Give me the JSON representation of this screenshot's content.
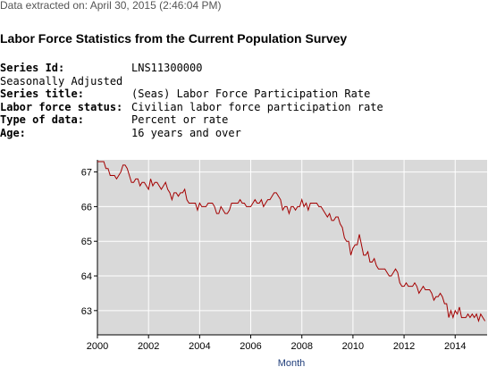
{
  "header": {
    "extracted": "Data extracted on: April 30, 2015 (2:46:04 PM)",
    "title": "Labor Force Statistics from the Current Population Survey"
  },
  "series_info": {
    "id_label": "Series Id:",
    "id_value": "LNS11300000",
    "adjustment": "Seasonally Adjusted",
    "title_label": "Series title:",
    "title_value": "(Seas) Labor Force Participation Rate",
    "status_label": "Labor force status:",
    "status_value": "Civilian labor force participation rate",
    "type_label": "Type of data:",
    "type_value": "Percent or rate",
    "age_label": "Age:",
    "age_value": "16 years and over"
  },
  "colors": {
    "plot_bg": "#d9d9d9",
    "line": "#a40000",
    "grid": "#ffffff",
    "axis_title": "#1f3d7a"
  },
  "chart_data": {
    "type": "line",
    "xlabel": "Month",
    "ylabel": "",
    "xlim": [
      2000.0,
      2015.25
    ],
    "ylim": [
      62.3,
      67.35
    ],
    "x_ticks": [
      2000,
      2002,
      2004,
      2006,
      2008,
      2010,
      2012,
      2014
    ],
    "x_tick_labels": [
      "2000",
      "2002",
      "2004",
      "2006",
      "2008",
      "2010",
      "2012",
      "2014"
    ],
    "y_ticks": [
      63,
      64,
      65,
      66,
      67
    ],
    "y_tick_labels": [
      "63",
      "64",
      "65",
      "66",
      "67"
    ],
    "grid": true,
    "start": "2000-01",
    "frequency": "monthly",
    "series": [
      {
        "values": [
          67.3,
          67.3,
          67.3,
          67.3,
          67.1,
          67.1,
          66.9,
          66.9,
          66.9,
          66.8,
          66.9,
          67.0,
          67.2,
          67.2,
          67.1,
          66.9,
          66.7,
          66.7,
          66.8,
          66.8,
          66.6,
          66.7,
          66.7,
          66.6,
          66.5,
          66.8,
          66.6,
          66.7,
          66.7,
          66.6,
          66.5,
          66.6,
          66.7,
          66.5,
          66.4,
          66.2,
          66.4,
          66.4,
          66.3,
          66.4,
          66.4,
          66.5,
          66.2,
          66.1,
          66.1,
          66.1,
          66.1,
          65.9,
          66.1,
          66.0,
          66.0,
          66.0,
          66.1,
          66.1,
          66.1,
          66.0,
          65.8,
          65.8,
          66.0,
          65.9,
          65.8,
          65.8,
          65.9,
          66.1,
          66.1,
          66.1,
          66.1,
          66.2,
          66.1,
          66.1,
          66.0,
          66.0,
          66.0,
          66.1,
          66.2,
          66.1,
          66.1,
          66.2,
          66.0,
          66.1,
          66.2,
          66.2,
          66.3,
          66.4,
          66.4,
          66.3,
          66.2,
          65.9,
          66.0,
          66.0,
          65.8,
          66.0,
          66.0,
          65.9,
          66.0,
          66.0,
          66.2,
          66.0,
          66.1,
          65.9,
          66.1,
          66.1,
          66.1,
          66.1,
          66.0,
          66.0,
          65.9,
          65.8,
          65.7,
          65.8,
          65.6,
          65.6,
          65.7,
          65.7,
          65.5,
          65.4,
          65.1,
          65.0,
          65.0,
          64.6,
          64.8,
          64.9,
          64.9,
          65.2,
          64.9,
          64.6,
          64.6,
          64.7,
          64.4,
          64.4,
          64.5,
          64.3,
          64.2,
          64.2,
          64.2,
          64.2,
          64.1,
          64.0,
          64.0,
          64.1,
          64.2,
          64.1,
          63.8,
          63.7,
          63.7,
          63.8,
          63.7,
          63.7,
          63.7,
          63.8,
          63.7,
          63.5,
          63.6,
          63.7,
          63.6,
          63.6,
          63.6,
          63.5,
          63.3,
          63.4,
          63.4,
          63.5,
          63.4,
          63.2,
          63.2,
          62.8,
          63.0,
          62.8,
          63.0,
          62.9,
          63.1,
          62.8,
          62.8,
          62.8,
          62.9,
          62.8,
          62.9,
          62.8,
          62.9,
          62.7,
          62.9,
          62.8,
          62.7
        ]
      }
    ]
  }
}
